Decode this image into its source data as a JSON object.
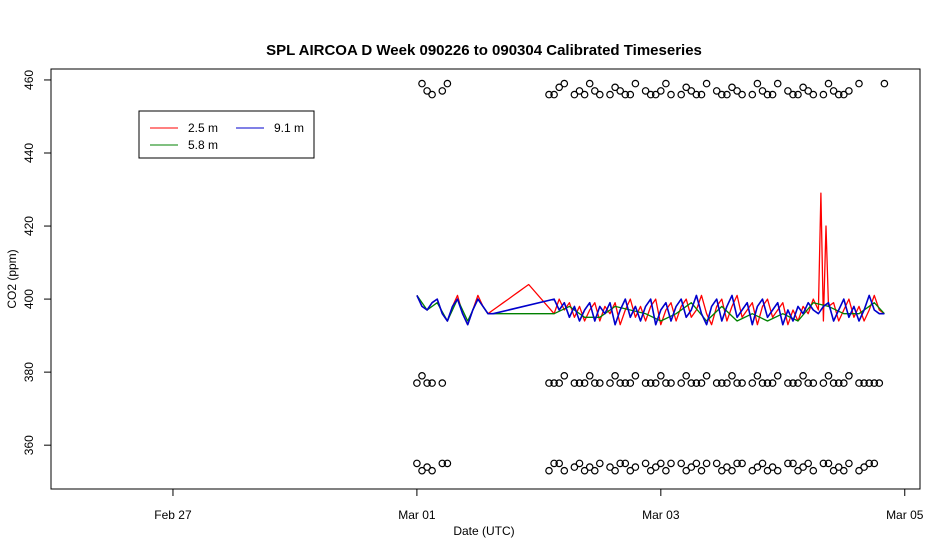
{
  "chart_data": {
    "type": "line",
    "title": "SPL AIRCOA D  Week 090226 to 090304  Calibrated Timeseries",
    "xlabel": "Date (UTC)",
    "ylabel": "CO2 (ppm)",
    "x_unit": "days (2009)",
    "xlim": [
      "2009-02-26T00:00",
      "2009-03-05T03:00"
    ],
    "ylim": [
      348,
      463
    ],
    "x_ticks": [
      {
        "at": "2009-02-27T00:00",
        "label": "Feb 27"
      },
      {
        "at": "2009-03-01T00:00",
        "label": "Mar 01"
      },
      {
        "at": "2009-03-03T00:00",
        "label": "Mar 03"
      },
      {
        "at": "2009-03-05T00:00",
        "label": "Mar 05"
      }
    ],
    "y_ticks": [
      360,
      380,
      400,
      420,
      440,
      460
    ],
    "grid": false,
    "legend_position": "top-left",
    "colors": {
      "2.5 m": "#ff0000",
      "5.8 m": "#008000",
      "9.1 m": "#0000cc",
      "calibration": "#000000"
    },
    "series": [
      {
        "name": "2.5 m",
        "x": [
          "2009-03-01T00:00",
          "2009-03-01T01:00",
          "2009-03-01T02:00",
          "2009-03-01T03:00",
          "2009-03-01T04:00",
          "2009-03-01T05:00",
          "2009-03-01T06:00",
          "2009-03-01T07:00",
          "2009-03-01T08:00",
          "2009-03-01T09:00",
          "2009-03-01T10:00",
          "2009-03-01T11:00",
          "2009-03-01T12:00",
          "2009-03-01T13:00",
          "2009-03-01T14:00",
          "2009-03-01T15:00",
          "2009-03-01T16:00",
          "2009-03-01T17:00",
          "2009-03-01T18:00",
          "2009-03-01T19:00",
          "2009-03-01T20:00",
          "2009-03-01T21:00",
          "2009-03-01T22:00",
          "2009-03-02T03:00",
          "2009-03-02T04:00",
          "2009-03-02T05:00",
          "2009-03-02T06:00",
          "2009-03-02T07:00",
          "2009-03-02T08:00",
          "2009-03-02T09:00",
          "2009-03-02T10:00",
          "2009-03-02T11:00",
          "2009-03-02T12:00",
          "2009-03-02T13:00",
          "2009-03-02T14:00",
          "2009-03-02T15:00",
          "2009-03-02T16:00",
          "2009-03-02T17:00",
          "2009-03-02T18:00",
          "2009-03-02T19:00",
          "2009-03-02T20:00",
          "2009-03-02T21:00",
          "2009-03-02T22:00",
          "2009-03-02T23:00",
          "2009-03-03T00:00",
          "2009-03-03T01:00",
          "2009-03-03T02:00",
          "2009-03-03T03:00",
          "2009-03-03T04:00",
          "2009-03-03T05:00",
          "2009-03-03T06:00",
          "2009-03-03T07:00",
          "2009-03-03T08:00",
          "2009-03-03T09:00",
          "2009-03-03T10:00",
          "2009-03-03T11:00",
          "2009-03-03T12:00",
          "2009-03-03T13:00",
          "2009-03-03T14:00",
          "2009-03-03T15:00",
          "2009-03-03T16:00",
          "2009-03-03T17:00",
          "2009-03-03T18:00",
          "2009-03-03T19:00",
          "2009-03-03T20:00",
          "2009-03-03T21:00",
          "2009-03-03T22:00",
          "2009-03-03T23:00",
          "2009-03-04T00:00",
          "2009-03-04T01:00",
          "2009-03-04T02:00",
          "2009-03-04T03:00",
          "2009-03-04T04:00",
          "2009-03-04T05:00",
          "2009-03-04T06:00",
          "2009-03-04T07:00",
          "2009-03-04T07:30",
          "2009-03-04T08:00",
          "2009-03-04T08:30",
          "2009-03-04T09:00",
          "2009-03-04T10:00",
          "2009-03-04T11:00",
          "2009-03-04T12:00",
          "2009-03-04T13:00",
          "2009-03-04T14:00",
          "2009-03-04T15:00",
          "2009-03-04T16:00",
          "2009-03-04T17:00",
          "2009-03-04T18:00",
          "2009-03-04T19:00",
          "2009-03-04T20:00"
        ],
        "y": [
          401,
          398,
          397,
          399,
          400,
          396,
          394,
          398,
          401,
          396,
          393,
          397,
          401,
          398,
          396,
          397,
          398,
          399,
          400,
          401,
          402,
          403,
          404,
          396,
          400,
          397,
          399,
          395,
          398,
          394,
          397,
          399,
          394,
          398,
          396,
          399,
          393,
          397,
          400,
          395,
          398,
          394,
          398,
          400,
          393,
          397,
          399,
          394,
          398,
          400,
          395,
          397,
          401,
          396,
          393,
          398,
          400,
          394,
          398,
          401,
          395,
          397,
          399,
          393,
          398,
          400,
          395,
          397,
          399,
          393,
          397,
          394,
          398,
          396,
          400,
          397,
          429,
          394,
          420,
          398,
          399,
          394,
          397,
          400,
          395,
          398,
          394,
          397,
          401,
          397,
          396
        ]
      },
      {
        "name": "5.8 m",
        "x": [
          "2009-03-01T00:00",
          "2009-03-01T02:00",
          "2009-03-01T04:00",
          "2009-03-01T06:00",
          "2009-03-01T08:00",
          "2009-03-01T10:00",
          "2009-03-01T12:00",
          "2009-03-01T14:00",
          "2009-03-02T03:00",
          "2009-03-02T06:00",
          "2009-03-02T09:00",
          "2009-03-02T12:00",
          "2009-03-02T15:00",
          "2009-03-02T18:00",
          "2009-03-02T21:00",
          "2009-03-03T00:00",
          "2009-03-03T03:00",
          "2009-03-03T06:00",
          "2009-03-03T09:00",
          "2009-03-03T12:00",
          "2009-03-03T15:00",
          "2009-03-03T18:00",
          "2009-03-03T21:00",
          "2009-03-04T00:00",
          "2009-03-04T03:00",
          "2009-03-04T06:00",
          "2009-03-04T09:00",
          "2009-03-04T12:00",
          "2009-03-04T15:00",
          "2009-03-04T18:00",
          "2009-03-04T20:00"
        ],
        "y": [
          401,
          397,
          399,
          394,
          400,
          394,
          400,
          396,
          396,
          398,
          395,
          395,
          398,
          397,
          396,
          394,
          396,
          399,
          394,
          398,
          394,
          396,
          394,
          396,
          394,
          399,
          398,
          396,
          396,
          399,
          396
        ]
      },
      {
        "name": "9.1 m",
        "x": [
          "2009-03-01T00:00",
          "2009-03-01T01:00",
          "2009-03-01T02:00",
          "2009-03-01T03:00",
          "2009-03-01T04:00",
          "2009-03-01T05:00",
          "2009-03-01T06:00",
          "2009-03-01T07:00",
          "2009-03-01T08:00",
          "2009-03-01T09:00",
          "2009-03-01T10:00",
          "2009-03-01T11:00",
          "2009-03-01T12:00",
          "2009-03-01T13:00",
          "2009-03-01T14:00",
          "2009-03-01T15:00",
          "2009-03-02T03:00",
          "2009-03-02T04:00",
          "2009-03-02T05:00",
          "2009-03-02T06:00",
          "2009-03-02T07:00",
          "2009-03-02T08:00",
          "2009-03-02T09:00",
          "2009-03-02T10:00",
          "2009-03-02T11:00",
          "2009-03-02T12:00",
          "2009-03-02T13:00",
          "2009-03-02T14:00",
          "2009-03-02T15:00",
          "2009-03-02T16:00",
          "2009-03-02T17:00",
          "2009-03-02T18:00",
          "2009-03-02T19:00",
          "2009-03-02T20:00",
          "2009-03-02T21:00",
          "2009-03-02T22:00",
          "2009-03-02T23:00",
          "2009-03-03T00:00",
          "2009-03-03T01:00",
          "2009-03-03T02:00",
          "2009-03-03T03:00",
          "2009-03-03T04:00",
          "2009-03-03T05:00",
          "2009-03-03T06:00",
          "2009-03-03T07:00",
          "2009-03-03T08:00",
          "2009-03-03T09:00",
          "2009-03-03T10:00",
          "2009-03-03T11:00",
          "2009-03-03T12:00",
          "2009-03-03T13:00",
          "2009-03-03T14:00",
          "2009-03-03T15:00",
          "2009-03-03T16:00",
          "2009-03-03T17:00",
          "2009-03-03T18:00",
          "2009-03-03T19:00",
          "2009-03-03T20:00",
          "2009-03-03T21:00",
          "2009-03-03T22:00",
          "2009-03-03T23:00",
          "2009-03-04T00:00",
          "2009-03-04T01:00",
          "2009-03-04T02:00",
          "2009-03-04T03:00",
          "2009-03-04T04:00",
          "2009-03-04T05:00",
          "2009-03-04T06:00",
          "2009-03-04T07:00",
          "2009-03-04T08:00",
          "2009-03-04T09:00",
          "2009-03-04T10:00",
          "2009-03-04T11:00",
          "2009-03-04T12:00",
          "2009-03-04T13:00",
          "2009-03-04T14:00",
          "2009-03-04T15:00",
          "2009-03-04T16:00",
          "2009-03-04T17:00",
          "2009-03-04T18:00",
          "2009-03-04T19:00",
          "2009-03-04T20:00"
        ],
        "y": [
          401,
          398,
          397,
          399,
          400,
          396,
          394,
          398,
          400,
          396,
          393,
          397,
          400,
          398,
          396,
          396,
          400,
          397,
          399,
          395,
          398,
          394,
          397,
          399,
          394,
          398,
          396,
          399,
          393,
          397,
          400,
          395,
          398,
          394,
          398,
          400,
          393,
          397,
          399,
          394,
          398,
          400,
          395,
          397,
          401,
          396,
          393,
          398,
          400,
          394,
          398,
          401,
          395,
          397,
          399,
          393,
          398,
          400,
          395,
          397,
          399,
          393,
          397,
          394,
          398,
          396,
          399,
          397,
          396,
          398,
          399,
          394,
          397,
          400,
          395,
          398,
          394,
          397,
          401,
          397,
          396,
          396
        ]
      },
      {
        "name": "",
        "kind": "calibration points",
        "x": [
          "2009-03-01T00:00",
          "2009-03-01T01:00",
          "2009-03-01T02:00",
          "2009-03-01T03:00",
          "2009-03-01T05:00",
          "2009-03-01T06:00",
          "2009-03-01T07:00",
          "2009-03-01T08:00",
          "2009-03-01T09:00",
          "2009-03-01T10:00",
          "2009-03-01T12:00",
          "2009-03-01T13:00",
          "2009-03-02T02:00",
          "2009-03-02T03:00",
          "2009-03-02T04:00",
          "2009-03-02T05:00",
          "2009-03-02T07:00",
          "2009-03-02T08:00",
          "2009-03-02T09:00",
          "2009-03-02T10:00",
          "2009-03-02T11:00",
          "2009-03-02T12:00",
          "2009-03-02T14:00",
          "2009-03-02T15:00",
          "2009-03-02T16:00",
          "2009-03-02T17:00",
          "2009-03-02T18:00",
          "2009-03-02T19:00",
          "2009-03-02T21:00",
          "2009-03-02T22:00",
          "2009-03-02T23:00",
          "2009-03-03T00:00",
          "2009-03-03T01:00",
          "2009-03-03T02:00",
          "2009-03-03T04:00",
          "2009-03-03T05:00",
          "2009-03-03T06:00",
          "2009-03-03T07:00",
          "2009-03-03T08:00",
          "2009-03-03T09:00",
          "2009-03-03T11:00",
          "2009-03-03T12:00",
          "2009-03-03T13:00",
          "2009-03-03T14:00",
          "2009-03-03T15:00",
          "2009-03-03T16:00",
          "2009-03-03T18:00",
          "2009-03-03T19:00",
          "2009-03-03T20:00",
          "2009-03-03T21:00",
          "2009-03-03T22:00",
          "2009-03-03T23:00",
          "2009-03-04T01:00",
          "2009-03-04T02:00",
          "2009-03-04T03:00",
          "2009-03-04T04:00",
          "2009-03-04T05:00",
          "2009-03-04T06:00",
          "2009-03-04T08:00",
          "2009-03-04T09:00",
          "2009-03-04T10:00",
          "2009-03-04T11:00",
          "2009-03-04T12:00",
          "2009-03-04T13:00",
          "2009-03-04T15:00",
          "2009-03-04T16:00",
          "2009-03-04T17:00",
          "2009-03-04T18:00",
          "2009-03-04T19:00",
          "2009-03-04T20:00"
        ],
        "y_high": [
          null,
          459,
          457,
          456,
          457,
          459,
          null,
          null,
          null,
          null,
          null,
          null,
          456,
          456,
          458,
          459,
          456,
          457,
          456,
          459,
          457,
          456,
          456,
          458,
          457,
          456,
          456,
          459,
          457,
          456,
          456,
          457,
          459,
          456,
          456,
          458,
          457,
          456,
          456,
          459,
          457,
          456,
          456,
          458,
          457,
          456,
          456,
          459,
          457,
          456,
          456,
          459,
          457,
          456,
          456,
          458,
          457,
          456,
          456,
          459,
          457,
          456,
          456,
          457,
          459,
          null,
          null,
          null,
          null,
          459
        ],
        "y_mid": [
          377,
          379,
          377,
          377,
          377,
          null,
          null,
          null,
          null,
          null,
          null,
          null,
          377,
          377,
          377,
          379,
          377,
          377,
          377,
          379,
          377,
          377,
          377,
          379,
          377,
          377,
          377,
          379,
          377,
          377,
          377,
          379,
          377,
          377,
          377,
          379,
          377,
          377,
          377,
          379,
          377,
          377,
          377,
          379,
          377,
          377,
          377,
          379,
          377,
          377,
          377,
          379,
          377,
          377,
          377,
          379,
          377,
          377,
          377,
          379,
          377,
          377,
          377,
          379,
          377,
          377,
          377,
          377,
          377,
          null
        ],
        "y_low": [
          355,
          353,
          354,
          353,
          355,
          355,
          null,
          null,
          null,
          null,
          null,
          null,
          353,
          355,
          355,
          353,
          354,
          355,
          353,
          354,
          353,
          355,
          354,
          353,
          355,
          355,
          353,
          354,
          355,
          353,
          354,
          355,
          353,
          355,
          355,
          353,
          354,
          355,
          353,
          355,
          355,
          353,
          354,
          353,
          355,
          355,
          353,
          354,
          355,
          353,
          354,
          353,
          355,
          355,
          353,
          354,
          355,
          353,
          355,
          355,
          353,
          354,
          353,
          355,
          353,
          354,
          355,
          355,
          null,
          null
        ]
      }
    ]
  }
}
